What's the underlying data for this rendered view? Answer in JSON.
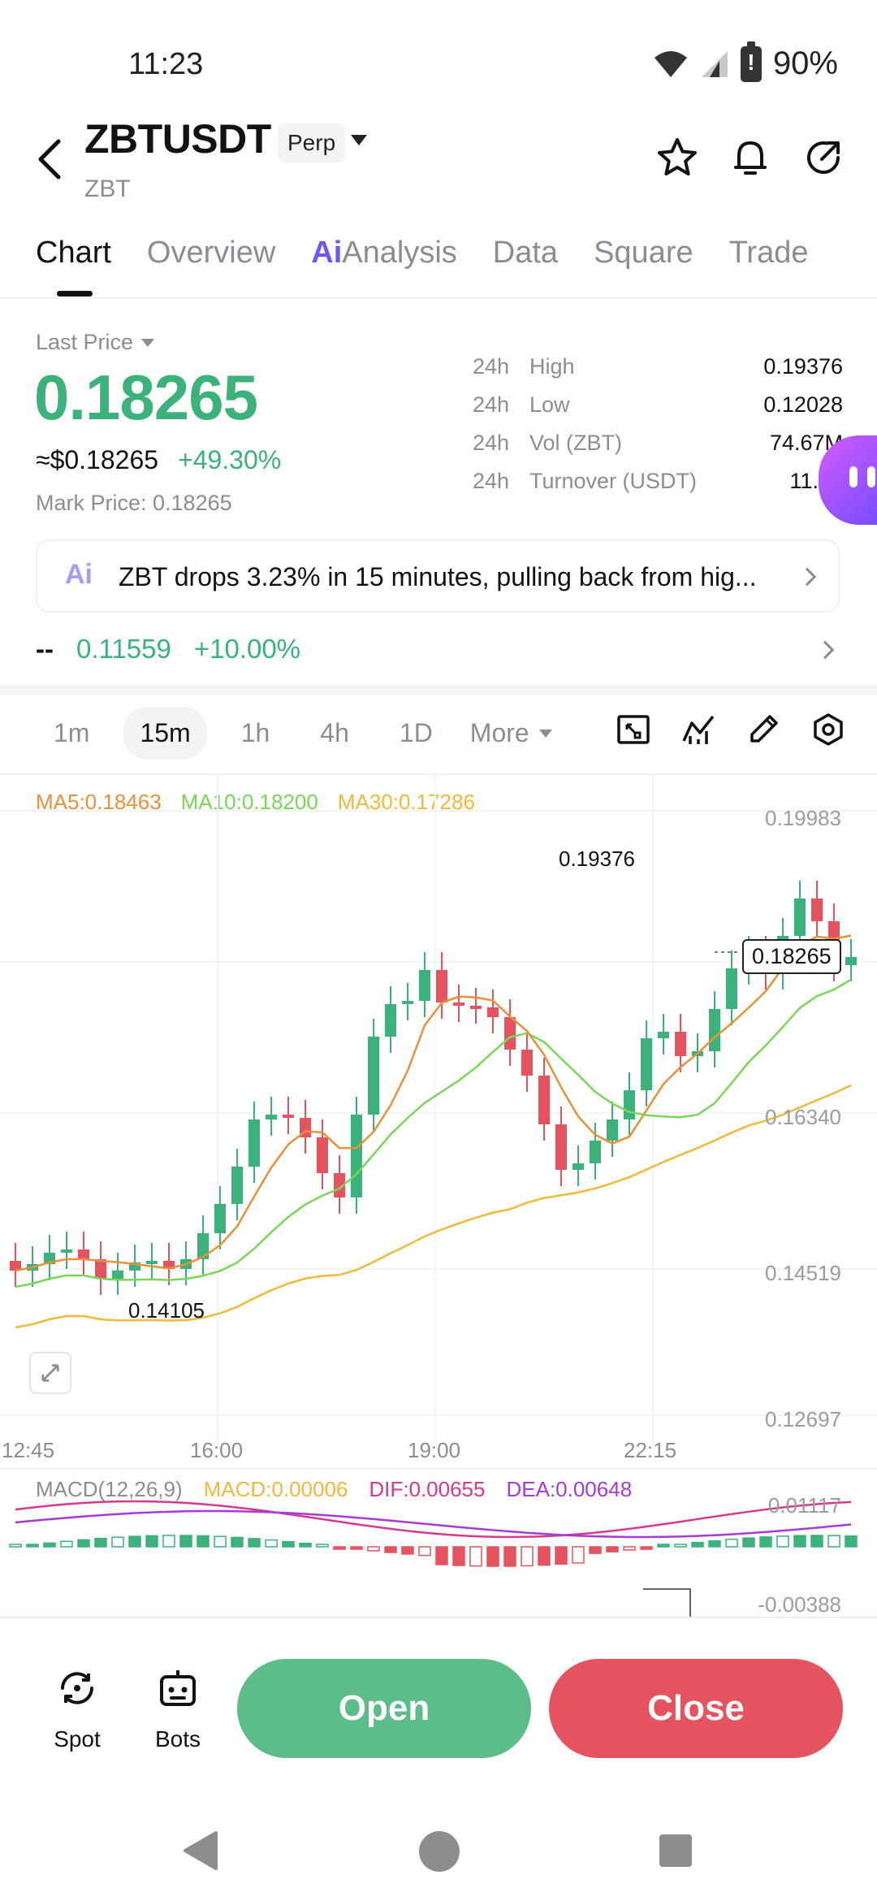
{
  "status_bar": {
    "time": "11:23",
    "battery": "90%"
  },
  "header": {
    "pair": "ZBTUSDT",
    "badge": "Perp",
    "subtitle": "ZBT"
  },
  "tabs": [
    {
      "label": "Chart"
    },
    {
      "label": "Overview"
    },
    {
      "label": "Analysis",
      "ai_glyph": "Ai"
    },
    {
      "label": "Data"
    },
    {
      "label": "Square"
    },
    {
      "label": "Trade"
    }
  ],
  "price": {
    "last_price_label": "Last Price",
    "last_price": "0.18265",
    "usd_price": "≈$0.18265",
    "change_pct": "+49.30%",
    "mark_price": "Mark Price: 0.18265"
  },
  "stats": [
    {
      "period": "24h",
      "label": "High",
      "value": "0.19376"
    },
    {
      "period": "24h",
      "label": "Low",
      "value": "0.12028"
    },
    {
      "period": "24h",
      "label": "Vol (ZBT)",
      "value": "74.67M"
    },
    {
      "period": "24h",
      "label": "Turnover (USDT)",
      "value": "11.90"
    }
  ],
  "news": {
    "ai_glyph": "Ai",
    "text": "ZBT drops 3.23% in 15 minutes, pulling back from hig..."
  },
  "funding": {
    "dash": "--",
    "value": "0.11559",
    "pct": "+10.00%"
  },
  "intervals": {
    "items": [
      "1m",
      "15m",
      "1h",
      "4h",
      "1D"
    ],
    "active": "15m",
    "more": "More"
  },
  "chart_legend": {
    "ma5": "MA5:0.18463",
    "ma10": "MA10:0.18200",
    "ma30": "MA30:0.17286"
  },
  "chart_axis": {
    "y_labels": [
      "0.19983",
      "0.16340",
      "0.14519",
      "0.12697"
    ],
    "x_labels": [
      "12:45",
      "16:00",
      "19:00",
      "22:15"
    ]
  },
  "chart_annotations": {
    "high": "0.19376",
    "low": "0.14105",
    "current": "0.18265"
  },
  "macd_legend": {
    "title": "MACD(12,26,9)",
    "macd": "MACD:0.00006",
    "dif": "DIF:0.00655",
    "dea": "DEA:0.00648",
    "y_labels": [
      "0.01117",
      "-0.00388"
    ]
  },
  "bottom": {
    "spot": "Spot",
    "bots": "Bots",
    "open": "Open",
    "close": "Close"
  },
  "colors": {
    "up": "#3bb27a",
    "down": "#e5545e",
    "ma5": "#e8913a",
    "ma10": "#7ad65a",
    "ma30": "#f0b93a",
    "dif": "#d6398f",
    "dea": "#a63bd6",
    "ai": "#6b57ff"
  }
}
